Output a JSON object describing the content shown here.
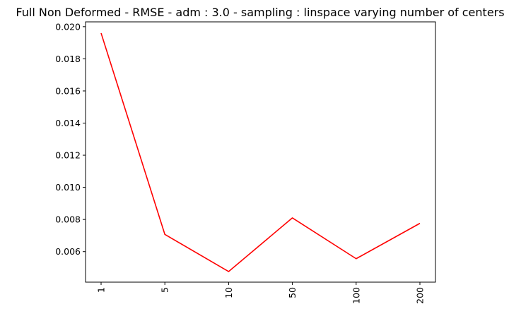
{
  "chart_data": {
    "type": "line",
    "title": "Full Non Deformed - RMSE - adm : 3.0 - sampling : linspace varying number of centers",
    "xlabel": "",
    "ylabel": "",
    "categories": [
      "1",
      "5",
      "10",
      "50",
      "100",
      "200"
    ],
    "series": [
      {
        "values": [
          0.0196,
          0.00707,
          0.00476,
          0.0081,
          0.00556,
          0.00776
        ],
        "color": "#ff0000"
      }
    ],
    "yticks": [
      "0.006",
      "0.008",
      "0.010",
      "0.012",
      "0.014",
      "0.016",
      "0.018",
      "0.020"
    ],
    "ylim": [
      0.0041,
      0.0203
    ],
    "x_tick_rotation": "vertical",
    "grid": false,
    "legend": "none"
  }
}
